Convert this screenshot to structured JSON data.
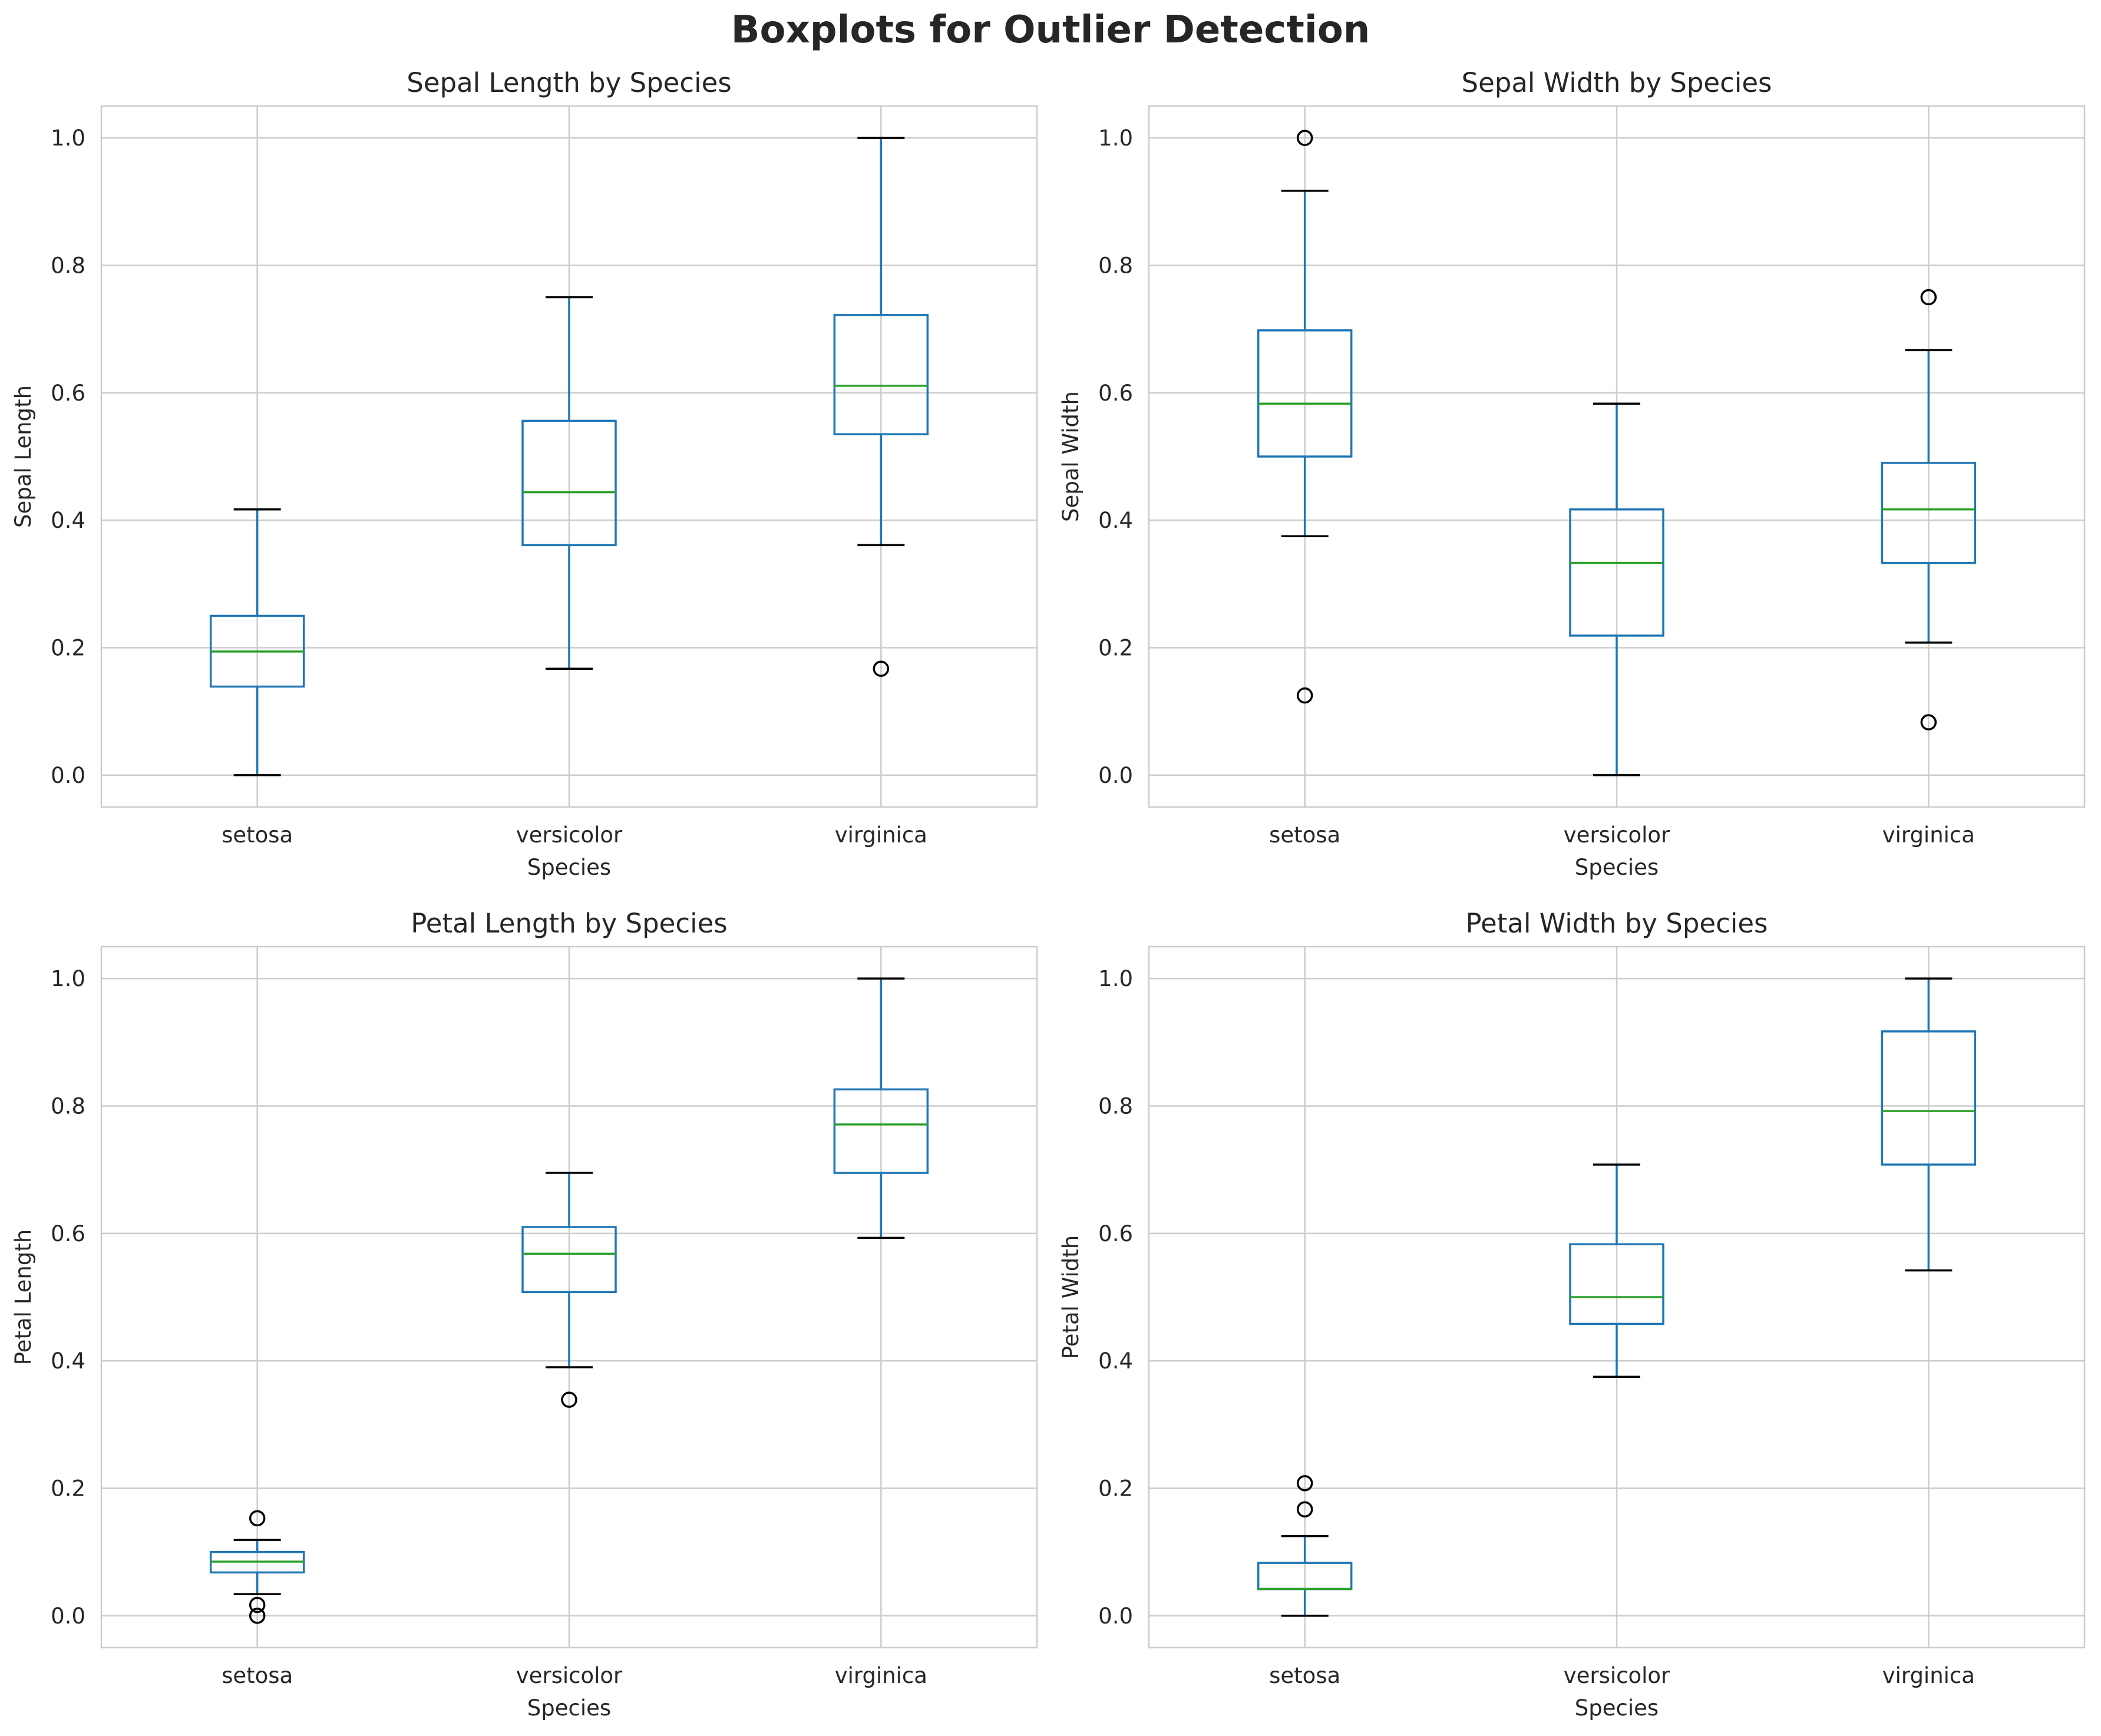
{
  "figure": {
    "title": "Boxplots for Outlier Detection"
  },
  "colors": {
    "box": "#1f77b4",
    "median": "#2ca02c",
    "cap": "#000000",
    "outlier": "#000000",
    "grid": "#cccccc",
    "frame": "#cccccc",
    "text": "#262626"
  },
  "chart_data": [
    {
      "type": "box",
      "title": "Sepal Length by Species",
      "xlabel": "Species",
      "ylabel": "Sepal Length",
      "ylim": [
        -0.05,
        1.05
      ],
      "yticks": [
        0.0,
        0.2,
        0.4,
        0.6,
        0.8,
        1.0
      ],
      "ytick_labels": [
        "0.0",
        "0.2",
        "0.4",
        "0.6",
        "0.8",
        "1.0"
      ],
      "grid": true,
      "categories": [
        "setosa",
        "versicolor",
        "virginica"
      ],
      "boxes": [
        {
          "category": "setosa",
          "whisker_low": 0.0,
          "q1": 0.139,
          "median": 0.194,
          "q3": 0.25,
          "whisker_high": 0.417,
          "outliers": []
        },
        {
          "category": "versicolor",
          "whisker_low": 0.167,
          "q1": 0.361,
          "median": 0.444,
          "q3": 0.556,
          "whisker_high": 0.75,
          "outliers": []
        },
        {
          "category": "virginica",
          "whisker_low": 0.361,
          "q1": 0.535,
          "median": 0.611,
          "q3": 0.722,
          "whisker_high": 1.0,
          "outliers": [
            0.167
          ]
        }
      ]
    },
    {
      "type": "box",
      "title": "Sepal Width by Species",
      "xlabel": "Species",
      "ylabel": "Sepal Width",
      "ylim": [
        -0.05,
        1.05
      ],
      "yticks": [
        0.0,
        0.2,
        0.4,
        0.6,
        0.8,
        1.0
      ],
      "ytick_labels": [
        "0.0",
        "0.2",
        "0.4",
        "0.6",
        "0.8",
        "1.0"
      ],
      "grid": true,
      "categories": [
        "setosa",
        "versicolor",
        "virginica"
      ],
      "boxes": [
        {
          "category": "setosa",
          "whisker_low": 0.375,
          "q1": 0.5,
          "median": 0.583,
          "q3": 0.698,
          "whisker_high": 0.917,
          "outliers": [
            1.0,
            0.125
          ]
        },
        {
          "category": "versicolor",
          "whisker_low": 0.0,
          "q1": 0.219,
          "median": 0.333,
          "q3": 0.417,
          "whisker_high": 0.583,
          "outliers": []
        },
        {
          "category": "virginica",
          "whisker_low": 0.208,
          "q1": 0.333,
          "median": 0.417,
          "q3": 0.49,
          "whisker_high": 0.667,
          "outliers": [
            0.75,
            0.083
          ]
        }
      ]
    },
    {
      "type": "box",
      "title": "Petal Length by Species",
      "xlabel": "Species",
      "ylabel": "Petal Length",
      "ylim": [
        -0.05,
        1.05
      ],
      "yticks": [
        0.0,
        0.2,
        0.4,
        0.6,
        0.8,
        1.0
      ],
      "ytick_labels": [
        "0.0",
        "0.2",
        "0.4",
        "0.6",
        "0.8",
        "1.0"
      ],
      "grid": true,
      "categories": [
        "setosa",
        "versicolor",
        "virginica"
      ],
      "boxes": [
        {
          "category": "setosa",
          "whisker_low": 0.034,
          "q1": 0.068,
          "median": 0.085,
          "q3": 0.1,
          "whisker_high": 0.119,
          "outliers": [
            0.153,
            0.017,
            0.0
          ]
        },
        {
          "category": "versicolor",
          "whisker_low": 0.39,
          "q1": 0.508,
          "median": 0.568,
          "q3": 0.61,
          "whisker_high": 0.695,
          "outliers": [
            0.339
          ]
        },
        {
          "category": "virginica",
          "whisker_low": 0.593,
          "q1": 0.695,
          "median": 0.771,
          "q3": 0.826,
          "whisker_high": 1.0,
          "outliers": []
        }
      ]
    },
    {
      "type": "box",
      "title": "Petal Width by Species",
      "xlabel": "Species",
      "ylabel": "Petal Width",
      "ylim": [
        -0.05,
        1.05
      ],
      "yticks": [
        0.0,
        0.2,
        0.4,
        0.6,
        0.8,
        1.0
      ],
      "ytick_labels": [
        "0.0",
        "0.2",
        "0.4",
        "0.6",
        "0.8",
        "1.0"
      ],
      "grid": true,
      "categories": [
        "setosa",
        "versicolor",
        "virginica"
      ],
      "boxes": [
        {
          "category": "setosa",
          "whisker_low": 0.0,
          "q1": 0.042,
          "median": 0.042,
          "q3": 0.083,
          "whisker_high": 0.125,
          "outliers": [
            0.208,
            0.167
          ]
        },
        {
          "category": "versicolor",
          "whisker_low": 0.375,
          "q1": 0.458,
          "median": 0.5,
          "q3": 0.583,
          "whisker_high": 0.708,
          "outliers": []
        },
        {
          "category": "virginica",
          "whisker_low": 0.542,
          "q1": 0.708,
          "median": 0.792,
          "q3": 0.917,
          "whisker_high": 1.0,
          "outliers": []
        }
      ]
    }
  ]
}
